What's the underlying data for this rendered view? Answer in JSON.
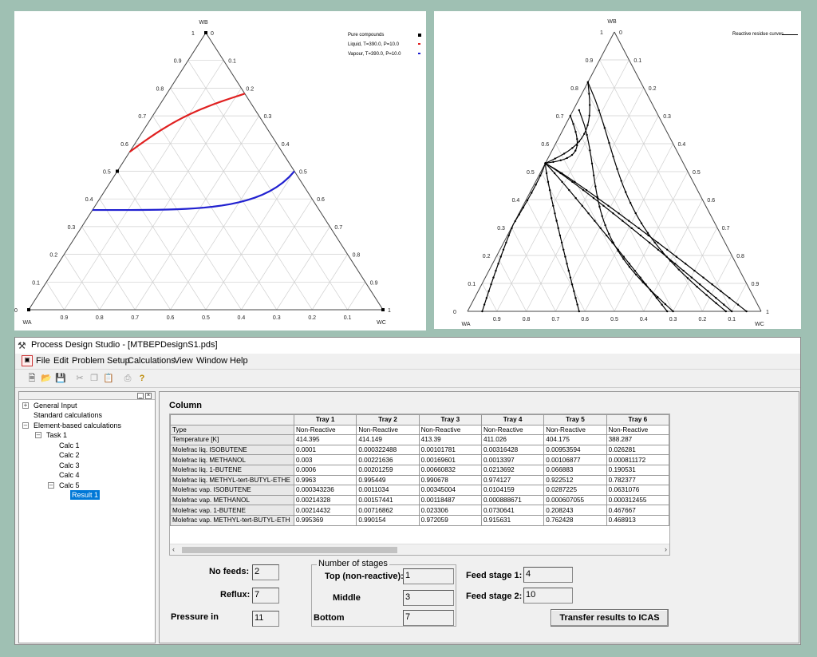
{
  "left_plot": {
    "labels": {
      "apex": "WB",
      "left": "WA",
      "right": "WC"
    },
    "left_ticks": [
      "0",
      "0.1",
      "0.2",
      "0.3",
      "0.4",
      "0.5",
      "0.6",
      "0.7",
      "0.8",
      "0.9",
      "1"
    ],
    "right_ticks": [
      "0",
      "0.1",
      "0.2",
      "0.3",
      "0.4",
      "0.5",
      "0.6",
      "0.7",
      "0.8",
      "0.9",
      "1"
    ],
    "bottom_ticks": [
      "0.9",
      "0.8",
      "0.7",
      "0.6",
      "0.5",
      "0.4",
      "0.3",
      "0.2",
      "0.1"
    ],
    "legend": [
      "Pure compounds",
      "Liquid, T=390.0, P=10.0",
      "Vapour, T=390.0, P=10.0"
    ],
    "colors": {
      "liquid": "#e02020",
      "vapour": "#2020d0",
      "axes": "#444444",
      "grid": "#c8c8c8"
    }
  },
  "right_plot": {
    "labels": {
      "apex": "WB",
      "left": "WA",
      "right": "WC"
    },
    "left_ticks": [
      "0",
      "0.1",
      "0.2",
      "0.3",
      "0.4",
      "0.5",
      "0.6",
      "0.7",
      "0.8",
      "0.9",
      "1"
    ],
    "right_ticks": [
      "0",
      "0.1",
      "0.2",
      "0.3",
      "0.4",
      "0.5",
      "0.6",
      "0.7",
      "0.8",
      "0.9",
      "1"
    ],
    "bottom_ticks": [
      "0.9",
      "0.8",
      "0.7",
      "0.6",
      "0.5",
      "0.4",
      "0.3",
      "0.2",
      "0.1"
    ],
    "legend": [
      "Reactive residue curves"
    ]
  },
  "window": {
    "title": "Process Design Studio - [MTBEPDesignS1.pds]",
    "menu": [
      "File",
      "Edit",
      "Problem Setup",
      "Calculations",
      "View",
      "Window",
      "Help"
    ],
    "tree": {
      "general": "General Input",
      "standard": "Standard calculations",
      "element": "Element-based calculations",
      "task": "Task 1",
      "calc1": "Calc 1",
      "calc2": "Calc 2",
      "calc3": "Calc 3",
      "calc4": "Calc 4",
      "calc5": "Calc 5",
      "result": "Result 1"
    },
    "section_title": "Column",
    "table": {
      "headers": [
        "Tray 1",
        "Tray 2",
        "Tray 3",
        "Tray 4",
        "Tray 5",
        "Tray 6"
      ],
      "rows": [
        {
          "label": "Type",
          "values": [
            "Non-Reactive",
            "Non-Reactive",
            "Non-Reactive",
            "Non-Reactive",
            "Non-Reactive",
            "Non-Reactive"
          ]
        },
        {
          "label": "Temperature [K]",
          "values": [
            "414.395",
            "414.149",
            "413.39",
            "411.026",
            "404.175",
            "388.287"
          ]
        },
        {
          "label": "Molefrac liq. ISOBUTENE",
          "values": [
            "0.0001",
            "0.000322488",
            "0.00101781",
            "0.00316428",
            "0.00953594",
            "0.026281"
          ]
        },
        {
          "label": "Molefrac liq. METHANOL",
          "values": [
            "0.003",
            "0.00221636",
            "0.00169601",
            "0.0013397",
            "0.00106877",
            "0.000811172"
          ]
        },
        {
          "label": "Molefrac liq. 1-BUTENE",
          "values": [
            "0.0006",
            "0.00201259",
            "0.00660832",
            "0.0213692",
            "0.066883",
            "0.190531"
          ]
        },
        {
          "label": "Molefrac liq. METHYL-tert-BUTYL-ETHE",
          "values": [
            "0.9963",
            "0.995449",
            "0.990678",
            "0.974127",
            "0.922512",
            "0.782377"
          ]
        },
        {
          "label": "Molefrac vap. ISOBUTENE",
          "values": [
            "0.000343236",
            "0.0011034",
            "0.00345004",
            "0.0104159",
            "0.0287225",
            "0.0631076"
          ]
        },
        {
          "label": "Molefrac vap. METHANOL",
          "values": [
            "0.00214328",
            "0.00157441",
            "0.00118487",
            "0.000888671",
            "0.000607055",
            "0.000312455"
          ]
        },
        {
          "label": "Molefrac vap. 1-BUTENE",
          "values": [
            "0.00214432",
            "0.00716862",
            "0.023306",
            "0.0730641",
            "0.208243",
            "0.467667"
          ]
        },
        {
          "label": "Molefrac vap. METHYL-tert-BUTYL-ETH",
          "values": [
            "0.995369",
            "0.990154",
            "0.972059",
            "0.915631",
            "0.762428",
            "0.468913"
          ]
        }
      ]
    },
    "form": {
      "no_feeds_label": "No feeds:",
      "no_feeds": "2",
      "reflux_label": "Reflux:",
      "reflux": "7",
      "pressure_label": "Pressure in",
      "pressure": "11",
      "stages_title": "Number of stages",
      "top_label": "Top (non-reactive):",
      "top": "1",
      "middle_label": "Middle",
      "middle": "3",
      "bottom_label": "Bottom",
      "bottom": "7",
      "feed1_label": "Feed stage 1:",
      "feed1": "4",
      "feed2_label": "Feed stage 2:",
      "feed2": "10",
      "transfer_button": "Transfer results to ICAS"
    }
  }
}
